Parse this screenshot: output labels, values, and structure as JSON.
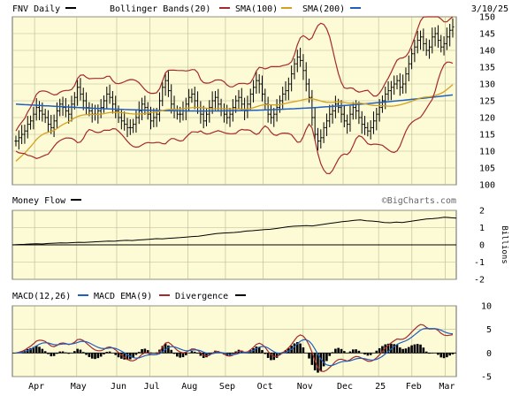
{
  "header": {
    "title": "FNV Daily",
    "date": "3/10/25",
    "legend": [
      {
        "label": "Bollinger Bands(20)",
        "color": "#a52a2a"
      },
      {
        "label": "SMA(100)",
        "color": "#d4a020"
      },
      {
        "label": "SMA(200)",
        "color": "#1f5fbf"
      }
    ]
  },
  "watermark": "©BigCharts.com",
  "chart_data": [
    {
      "type": "ohlc",
      "title": "FNV Daily",
      "ylim": [
        100,
        150
      ],
      "yticks": [
        "100",
        "105",
        "110",
        "115",
        "120",
        "125",
        "130",
        "135",
        "140",
        "145",
        "150"
      ],
      "grid": true,
      "legend_position": "top",
      "approx_closes": [
        113,
        114,
        115,
        116,
        118,
        119,
        121,
        123,
        122,
        121,
        120,
        118,
        117,
        119,
        122,
        124,
        123,
        122,
        121,
        124,
        126,
        129,
        127,
        125,
        123,
        122,
        121,
        121,
        122,
        123,
        125,
        127,
        126,
        124,
        122,
        120,
        119,
        118,
        117,
        117,
        118,
        120,
        122,
        124,
        123,
        121,
        119,
        120,
        121,
        125,
        129,
        131,
        128,
        124,
        122,
        121,
        121,
        122,
        124,
        126,
        127,
        125,
        123,
        121,
        119,
        121,
        123,
        125,
        126,
        124,
        122,
        121,
        120,
        121,
        123,
        125,
        126,
        124,
        122,
        124,
        127,
        129,
        131,
        130,
        127,
        124,
        121,
        120,
        121,
        123,
        125,
        127,
        128,
        130,
        133,
        136,
        138,
        137,
        134,
        130,
        126,
        120,
        115,
        113,
        114,
        117,
        119,
        121,
        122,
        124,
        123,
        121,
        119,
        118,
        121,
        123,
        122,
        120,
        118,
        117,
        116,
        117,
        119,
        121,
        123,
        125,
        127,
        128,
        129,
        130,
        131,
        129,
        130,
        133,
        136,
        139,
        141,
        143,
        144,
        142,
        140,
        141,
        144,
        145,
        143,
        141,
        142,
        144,
        146,
        147
      ]
    },
    {
      "type": "line",
      "title": "Money Flow",
      "ylabel": "Billions",
      "ylim": [
        -2,
        2
      ],
      "yticks": [
        "2",
        "1",
        "0",
        "-1",
        "-2"
      ],
      "approx_values": [
        0.0,
        0.02,
        0.03,
        0.05,
        0.06,
        0.05,
        0.08,
        0.1,
        0.12,
        0.11,
        0.13,
        0.15,
        0.14,
        0.16,
        0.18,
        0.2,
        0.22,
        0.21,
        0.24,
        0.26,
        0.25,
        0.28,
        0.3,
        0.33,
        0.36,
        0.35,
        0.38,
        0.4,
        0.42,
        0.45,
        0.48,
        0.5,
        0.55,
        0.6,
        0.65,
        0.68,
        0.7,
        0.72,
        0.75,
        0.8,
        0.82,
        0.85,
        0.88,
        0.9,
        0.95,
        1.0,
        1.05,
        1.08,
        1.1,
        1.12,
        1.1,
        1.15,
        1.2,
        1.25,
        1.3,
        1.35,
        1.38,
        1.42,
        1.45,
        1.4,
        1.38,
        1.35,
        1.3,
        1.28,
        1.32,
        1.3,
        1.35,
        1.4,
        1.45,
        1.5,
        1.52,
        1.55,
        1.6,
        1.58,
        1.55
      ]
    },
    {
      "type": "line",
      "title": "MACD(12,26)",
      "legend": [
        "MACD EMA(9)",
        "Divergence"
      ],
      "ylim": [
        -5,
        10
      ],
      "yticks": [
        "10",
        "5",
        "0",
        "-5"
      ]
    }
  ],
  "money_flow": {
    "label": "Money Flow",
    "color": "#000000"
  },
  "macd": {
    "label": "MACD(12,26)",
    "ema_label": "MACD EMA(9)",
    "ema_color": "#1f5fbf",
    "divergence_label": "Divergence",
    "line_color": "#a52a2a"
  },
  "xaxis": {
    "months": [
      "Apr",
      "May",
      "Jun",
      "Jul",
      "Aug",
      "Sep",
      "Oct",
      "Nov",
      "Dec",
      "25",
      "Feb",
      "Mar"
    ]
  }
}
